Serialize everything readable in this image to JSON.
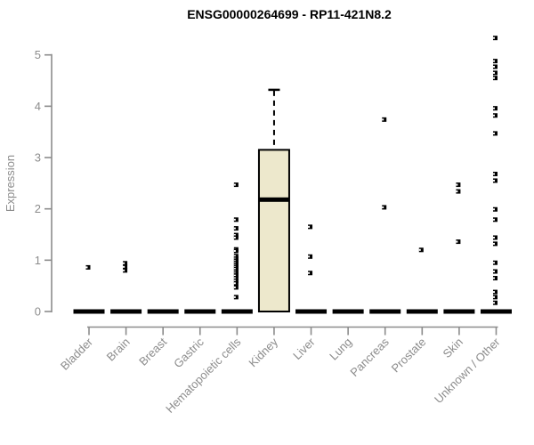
{
  "header": {
    "title": "ENSG00000264699 - RP11-421N8.2"
  },
  "chart_data": {
    "type": "boxplot",
    "title": "ENSG00000264699 - RP11-421N8.2",
    "xlabel": "",
    "ylabel": "Expression",
    "ylim": [
      -0.3,
      5.45
    ],
    "yticks": [
      0,
      1,
      2,
      3,
      4,
      5
    ],
    "grid": false,
    "legend": null,
    "x_tick_rotation_deg": 45,
    "categories": [
      "Bladder",
      "Brain",
      "Breast",
      "Gastric",
      "Hematopoietic cells",
      "Kidney",
      "Liver",
      "Lung",
      "Pancreas",
      "Prostate",
      "Skin",
      "Unknown / Other"
    ],
    "boxes": [
      {
        "category": "Bladder",
        "q1": 0,
        "median": 0,
        "q3": 0,
        "whisker_low": 0,
        "whisker_high": 0,
        "outliers": [
          0.86
        ]
      },
      {
        "category": "Brain",
        "q1": 0,
        "median": 0,
        "q3": 0,
        "whisker_low": 0,
        "whisker_high": 0,
        "outliers": [
          0.94,
          0.87,
          0.8
        ]
      },
      {
        "category": "Breast",
        "q1": 0,
        "median": 0,
        "q3": 0,
        "whisker_low": 0,
        "whisker_high": 0,
        "outliers": []
      },
      {
        "category": "Gastric",
        "q1": 0,
        "median": 0,
        "q3": 0,
        "whisker_low": 0,
        "whisker_high": 0,
        "outliers": []
      },
      {
        "category": "Hematopoietic cells",
        "q1": 0,
        "median": 0,
        "q3": 0,
        "whisker_low": 0,
        "whisker_high": 0,
        "outliers": [
          2.47,
          1.79,
          1.62,
          1.49,
          1.44,
          1.21,
          1.18,
          1.08,
          1.03,
          0.99,
          0.95,
          0.91,
          0.87,
          0.83,
          0.78,
          0.74,
          0.7,
          0.65,
          0.6,
          0.55,
          0.47,
          0.28
        ]
      },
      {
        "category": "Kidney",
        "q1": 0,
        "median": 2.18,
        "q3": 3.15,
        "whisker_low": 0,
        "whisker_high": 4.32,
        "outliers": []
      },
      {
        "category": "Liver",
        "q1": 0,
        "median": 0,
        "q3": 0,
        "whisker_low": 0,
        "whisker_high": 0,
        "outliers": [
          1.65,
          1.07,
          0.75
        ]
      },
      {
        "category": "Lung",
        "q1": 0,
        "median": 0,
        "q3": 0,
        "whisker_low": 0,
        "whisker_high": 0,
        "outliers": []
      },
      {
        "category": "Pancreas",
        "q1": 0,
        "median": 0,
        "q3": 0,
        "whisker_low": 0,
        "whisker_high": 0,
        "outliers": [
          3.74,
          2.03
        ]
      },
      {
        "category": "Prostate",
        "q1": 0,
        "median": 0,
        "q3": 0,
        "whisker_low": 0,
        "whisker_high": 0,
        "outliers": [
          1.2
        ]
      },
      {
        "category": "Skin",
        "q1": 0,
        "median": 0,
        "q3": 0,
        "whisker_low": 0,
        "whisker_high": 0,
        "outliers": [
          2.47,
          2.34,
          1.36
        ]
      },
      {
        "category": "Unknown / Other",
        "q1": 0,
        "median": 0,
        "q3": 0,
        "whisker_low": 0,
        "whisker_high": 0,
        "outliers": [
          5.33,
          4.88,
          4.77,
          4.65,
          4.55,
          3.96,
          3.82,
          3.47,
          2.68,
          2.55,
          1.99,
          1.79,
          1.44,
          1.32,
          0.95,
          0.78,
          0.65,
          0.38,
          0.28,
          0.17
        ]
      }
    ],
    "style": {
      "box_fill": "#EDE8CC",
      "box_stroke": "#000000",
      "median_color": "#000000",
      "outlier_color": "#000000",
      "axis_color": "#8C8C8C",
      "tick_text_color": "#8C8C8C",
      "title_color": "#000000",
      "outlier_marker": "small-square-with-notch"
    }
  }
}
